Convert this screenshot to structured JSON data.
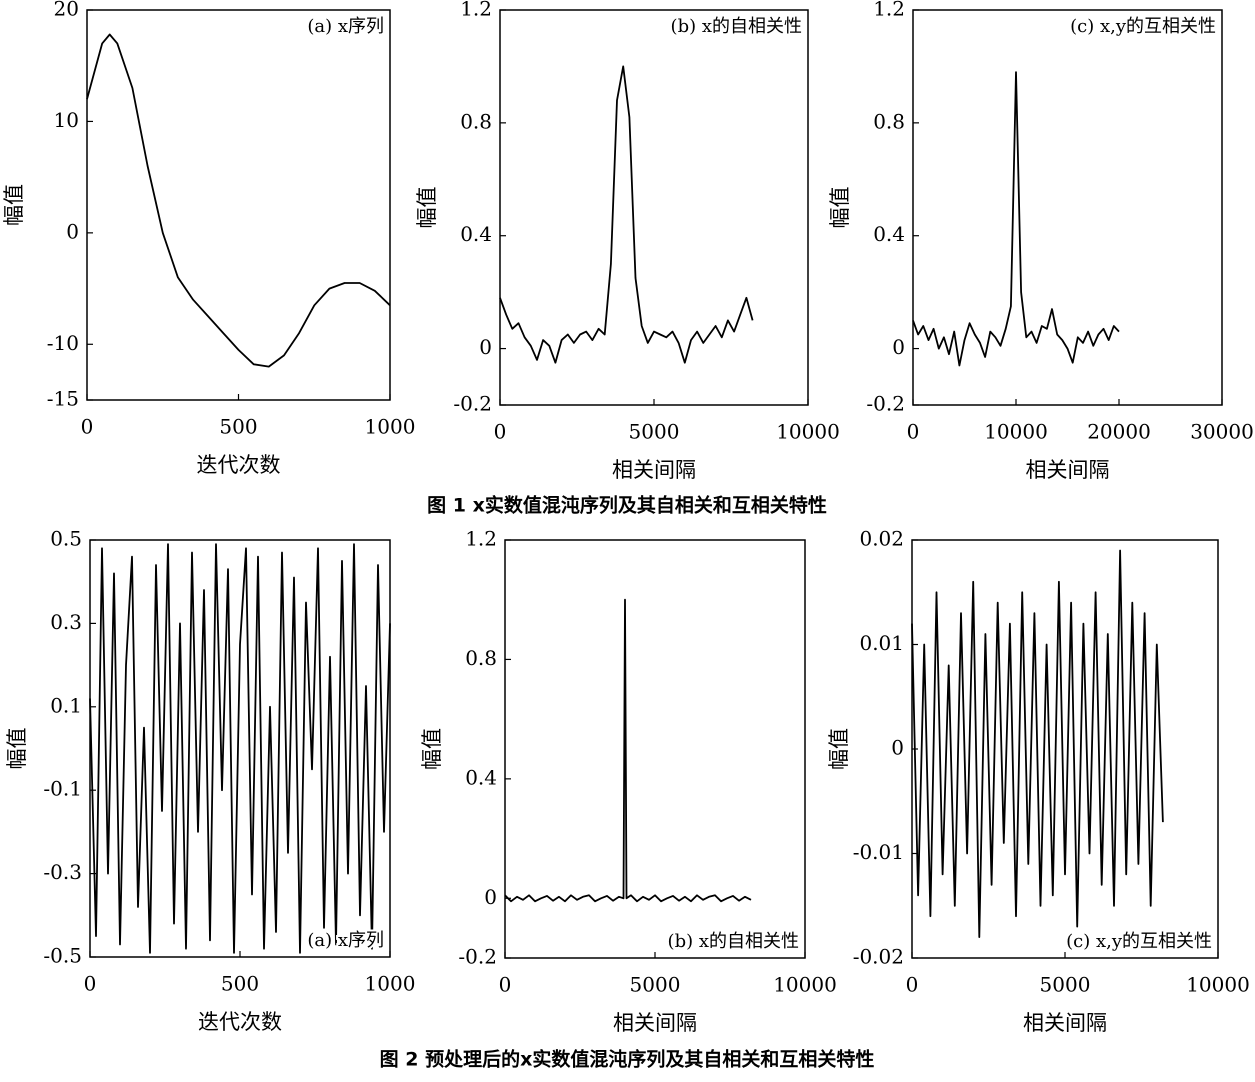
{
  "captions": [
    "图 1 x实数值混沌序列及其自相关和互相关特性",
    "图 2 预处理后的x实数值混沌序列及其自相关和互相关特性"
  ],
  "chart_data": [
    {
      "type": "line",
      "annotation": "(a) x序列",
      "annotation_corner": "top-right",
      "x_label": "迭代次数",
      "y_label": "幅值",
      "color": "#000000",
      "x": [
        0,
        50,
        75,
        100,
        150,
        200,
        250,
        300,
        350,
        400,
        450,
        500,
        550,
        600,
        650,
        700,
        750,
        800,
        850,
        900,
        950,
        1000
      ],
      "values": [
        12,
        17,
        17.8,
        17,
        13,
        6,
        0,
        -4,
        -6,
        -7.5,
        -9,
        -10.5,
        -11.8,
        -12,
        -11,
        -9,
        -6.5,
        -5,
        -4.5,
        -4.5,
        -5.2,
        -6.5
      ],
      "xlim": [
        0,
        1000
      ],
      "ylim": [
        -15,
        20
      ],
      "xticks": [
        0,
        500,
        1000
      ],
      "yticks": [
        -15,
        -10,
        0,
        10,
        20
      ]
    },
    {
      "type": "line",
      "annotation": "(b) x的自相关性",
      "annotation_corner": "top-right",
      "x_label": "相关间隔",
      "y_label": "幅值",
      "color": "#000000",
      "x": [
        0,
        200,
        400,
        600,
        800,
        1000,
        1200,
        1400,
        1600,
        1800,
        2000,
        2200,
        2400,
        2600,
        2800,
        3000,
        3200,
        3400,
        3600,
        3800,
        4000,
        4200,
        4400,
        4600,
        4800,
        5000,
        5200,
        5400,
        5600,
        5800,
        6000,
        6200,
        6400,
        6600,
        6800,
        7000,
        7200,
        7400,
        7600,
        7800,
        8000,
        8200
      ],
      "values": [
        0.18,
        0.12,
        0.07,
        0.09,
        0.04,
        0.01,
        -0.04,
        0.03,
        0.01,
        -0.05,
        0.03,
        0.05,
        0.02,
        0.05,
        0.06,
        0.03,
        0.07,
        0.05,
        0.3,
        0.88,
        1.0,
        0.82,
        0.25,
        0.08,
        0.02,
        0.06,
        0.05,
        0.04,
        0.06,
        0.02,
        -0.05,
        0.03,
        0.06,
        0.02,
        0.05,
        0.08,
        0.04,
        0.1,
        0.06,
        0.12,
        0.18,
        0.1
      ],
      "xlim": [
        0,
        10000
      ],
      "ylim": [
        -0.2,
        1.2
      ],
      "xticks": [
        0,
        5000,
        10000
      ],
      "yticks": [
        -0.2,
        0,
        0.4,
        0.8,
        1.2
      ]
    },
    {
      "type": "line",
      "annotation": "(c) x,y的互相关性",
      "annotation_corner": "top-right",
      "x_label": "相关间隔",
      "y_label": "幅值",
      "color": "#000000",
      "x": [
        0,
        500,
        1000,
        1500,
        2000,
        2500,
        3000,
        3500,
        4000,
        4500,
        5000,
        5500,
        6000,
        6500,
        7000,
        7500,
        8000,
        8500,
        9000,
        9500,
        10000,
        10500,
        11000,
        11500,
        12000,
        12500,
        13000,
        13500,
        14000,
        14500,
        15000,
        15500,
        16000,
        16500,
        17000,
        17500,
        18000,
        18500,
        19000,
        19500,
        20000
      ],
      "values": [
        0.1,
        0.05,
        0.08,
        0.03,
        0.07,
        0.0,
        0.04,
        -0.02,
        0.06,
        -0.06,
        0.03,
        0.09,
        0.05,
        0.02,
        -0.03,
        0.06,
        0.04,
        0.01,
        0.07,
        0.15,
        0.98,
        0.2,
        0.04,
        0.06,
        0.02,
        0.08,
        0.07,
        0.14,
        0.05,
        0.03,
        0.0,
        -0.05,
        0.04,
        0.02,
        0.06,
        0.01,
        0.05,
        0.07,
        0.03,
        0.08,
        0.06
      ],
      "xlim": [
        0,
        30000
      ],
      "ylim": [
        -0.2,
        1.2
      ],
      "xticks": [
        0,
        10000,
        20000,
        30000
      ],
      "yticks": [
        -0.2,
        0,
        0.4,
        0.8,
        1.2
      ]
    },
    {
      "type": "line",
      "annotation": "(a) x序列",
      "annotation_corner": "bottom-right",
      "x_label": "迭代次数",
      "y_label": "幅值",
      "color": "#000000",
      "x": [
        0,
        20,
        40,
        60,
        80,
        100,
        120,
        140,
        160,
        180,
        200,
        220,
        240,
        260,
        280,
        300,
        320,
        340,
        360,
        380,
        400,
        420,
        440,
        460,
        480,
        500,
        520,
        540,
        560,
        580,
        600,
        620,
        640,
        660,
        680,
        700,
        720,
        740,
        760,
        780,
        800,
        820,
        840,
        860,
        880,
        900,
        920,
        940,
        960,
        980,
        1000
      ],
      "values": [
        0.12,
        -0.45,
        0.48,
        -0.3,
        0.42,
        -0.47,
        0.2,
        0.46,
        -0.38,
        0.05,
        -0.49,
        0.44,
        -0.15,
        0.49,
        -0.42,
        0.3,
        -0.48,
        0.47,
        -0.2,
        0.38,
        -0.46,
        0.49,
        -0.1,
        0.43,
        -0.49,
        0.25,
        0.48,
        -0.35,
        0.46,
        -0.48,
        0.1,
        -0.44,
        0.47,
        -0.25,
        0.41,
        -0.49,
        0.35,
        -0.05,
        0.48,
        -0.43,
        0.22,
        -0.47,
        0.45,
        -0.3,
        0.49,
        -0.4,
        0.15,
        -0.48,
        0.44,
        -0.2,
        0.3
      ],
      "xlim": [
        0,
        1000
      ],
      "ylim": [
        -0.5,
        0.5
      ],
      "xticks": [
        0,
        500,
        1000
      ],
      "yticks": [
        -0.5,
        -0.3,
        -0.1,
        0.1,
        0.3,
        0.5
      ]
    },
    {
      "type": "line",
      "annotation": "(b) x的自相关性",
      "annotation_corner": "bottom-right",
      "x_label": "相关间隔",
      "y_label": "幅值",
      "color": "#000000",
      "x": [
        0,
        200,
        400,
        600,
        800,
        1000,
        1200,
        1400,
        1600,
        1800,
        2000,
        2200,
        2400,
        2600,
        2800,
        3000,
        3200,
        3400,
        3600,
        3800,
        3950,
        4000,
        4050,
        4200,
        4400,
        4600,
        4800,
        5000,
        5200,
        5400,
        5600,
        5800,
        6000,
        6200,
        6400,
        6600,
        6800,
        7000,
        7200,
        7400,
        7600,
        7800,
        8000,
        8200
      ],
      "values": [
        0.01,
        -0.01,
        0.005,
        -0.005,
        0.01,
        -0.01,
        0.0,
        0.008,
        -0.008,
        0.005,
        -0.01,
        0.01,
        -0.005,
        0.005,
        0.01,
        -0.01,
        0.0,
        0.008,
        -0.008,
        0.005,
        0.0,
        1.0,
        0.0,
        0.01,
        -0.01,
        0.005,
        -0.005,
        0.01,
        -0.01,
        0.0,
        0.008,
        -0.008,
        0.005,
        -0.01,
        0.01,
        -0.005,
        0.005,
        0.01,
        -0.01,
        0.0,
        0.008,
        -0.008,
        0.005,
        -0.005
      ],
      "xlim": [
        0,
        10000
      ],
      "ylim": [
        -0.2,
        1.2
      ],
      "xticks": [
        0,
        5000,
        10000
      ],
      "yticks": [
        -0.2,
        0,
        0.4,
        0.8,
        1.2
      ]
    },
    {
      "type": "line",
      "annotation": "(c) x,y的互相关性",
      "annotation_corner": "bottom-right",
      "x_label": "相关间隔",
      "y_label": "幅值",
      "color": "#000000",
      "x": [
        0,
        200,
        400,
        600,
        800,
        1000,
        1200,
        1400,
        1600,
        1800,
        2000,
        2200,
        2400,
        2600,
        2800,
        3000,
        3200,
        3400,
        3600,
        3800,
        4000,
        4200,
        4400,
        4600,
        4800,
        5000,
        5200,
        5400,
        5600,
        5800,
        6000,
        6200,
        6400,
        6600,
        6800,
        7000,
        7200,
        7400,
        7600,
        7800,
        8000,
        8200
      ],
      "values": [
        0.012,
        -0.014,
        0.01,
        -0.016,
        0.015,
        -0.012,
        0.008,
        -0.015,
        0.013,
        -0.01,
        0.016,
        -0.018,
        0.011,
        -0.013,
        0.014,
        -0.009,
        0.012,
        -0.016,
        0.015,
        -0.011,
        0.013,
        -0.015,
        0.01,
        -0.014,
        0.016,
        -0.012,
        0.014,
        -0.017,
        0.012,
        -0.01,
        0.015,
        -0.013,
        0.011,
        -0.015,
        0.019,
        -0.012,
        0.014,
        -0.011,
        0.013,
        -0.015,
        0.01,
        -0.007
      ],
      "xlim": [
        0,
        10000
      ],
      "ylim": [
        -0.02,
        0.02
      ],
      "xticks": [
        0,
        5000,
        10000
      ],
      "yticks": [
        -0.02,
        -0.01,
        0,
        0.01,
        0.02
      ]
    }
  ]
}
